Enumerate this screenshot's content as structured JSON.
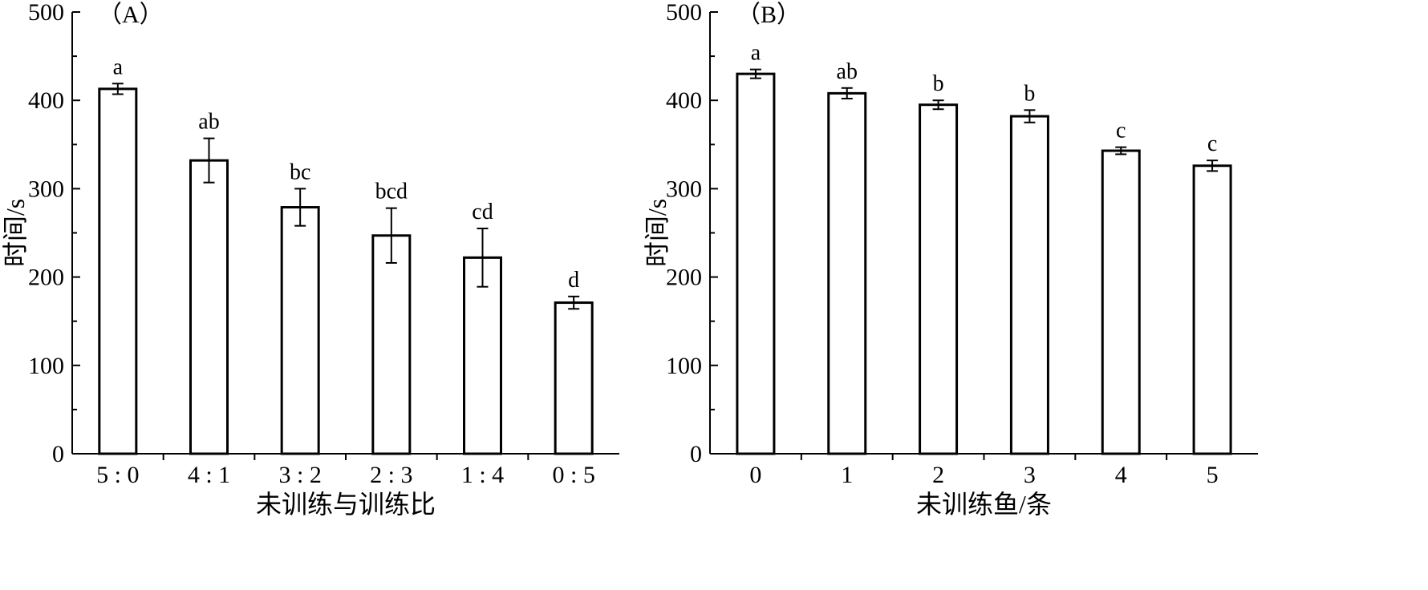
{
  "chart_data": [
    {
      "type": "bar",
      "panel_label": "（A）",
      "xlabel": "未训练与训练比",
      "ylabel": "时间/s",
      "ylim": [
        0,
        500
      ],
      "yticks": [
        0,
        100,
        200,
        300,
        400,
        500
      ],
      "categories": [
        "5 : 0",
        "4 : 1",
        "3 : 2",
        "2 : 3",
        "1 : 4",
        "0 : 5"
      ],
      "values": [
        413,
        332,
        279,
        247,
        222,
        171
      ],
      "errors": [
        6,
        25,
        21,
        31,
        33,
        7
      ],
      "significance": [
        "a",
        "ab",
        "bc",
        "bcd",
        "cd",
        "d"
      ],
      "bar_fill": "#ffffff",
      "bar_stroke": "#000000"
    },
    {
      "type": "bar",
      "panel_label": "（B）",
      "xlabel": "未训练鱼/条",
      "ylabel": "时间/s",
      "ylim": [
        0,
        500
      ],
      "yticks": [
        0,
        100,
        200,
        300,
        400,
        500
      ],
      "categories": [
        "0",
        "1",
        "2",
        "3",
        "4",
        "5"
      ],
      "values": [
        430,
        408,
        395,
        382,
        343,
        326
      ],
      "errors": [
        5,
        6,
        5,
        7,
        4,
        6
      ],
      "significance": [
        "a",
        "ab",
        "b",
        "b",
        "c",
        "c"
      ],
      "bar_fill": "#ffffff",
      "bar_stroke": "#000000"
    }
  ]
}
